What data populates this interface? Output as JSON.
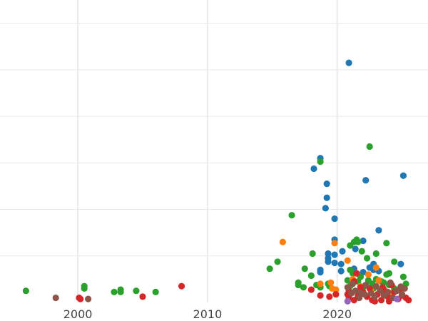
{
  "chart_data": {
    "type": "scatter",
    "title": "",
    "xlabel": "",
    "ylabel": "",
    "xlim": [
      1994,
      2027
    ],
    "ylim": [
      0,
      130
    ],
    "x_ticks": [
      2000,
      2010,
      2020
    ],
    "x_tick_labels": [
      "2000",
      "2010",
      "2020"
    ],
    "y_gridlines": [
      20,
      40,
      60,
      80,
      100,
      120
    ],
    "y_tick_labels_visible": false,
    "grid": true,
    "legend": "none",
    "series": [
      {
        "color": "#1f77b4",
        "points": [
          [
            2020.9,
            103
          ],
          [
            2018.7,
            62
          ],
          [
            2018.2,
            57.5
          ],
          [
            2019.2,
            51
          ],
          [
            2022.2,
            52.5
          ],
          [
            2025.1,
            54.5
          ],
          [
            2019.2,
            45
          ],
          [
            2019.1,
            40.5
          ],
          [
            2019.8,
            36
          ],
          [
            2023.2,
            31
          ],
          [
            2019.8,
            27
          ],
          [
            2022.0,
            26.5
          ],
          [
            2021.4,
            23
          ],
          [
            2020.4,
            22
          ],
          [
            2019.3,
            21
          ],
          [
            2019.8,
            20.5
          ],
          [
            2019.3,
            19
          ],
          [
            2019.3,
            17.5
          ],
          [
            2019.8,
            17
          ],
          [
            2020.3,
            16.5
          ],
          [
            2020.3,
            13.5
          ],
          [
            2018.7,
            14
          ],
          [
            2018.7,
            13
          ],
          [
            2022.8,
            16.5
          ],
          [
            2024.9,
            16.5
          ],
          [
            2022.5,
            15
          ],
          [
            2022.0,
            13
          ],
          [
            2023.2,
            13.5
          ],
          [
            2022.8,
            14
          ],
          [
            2021.3,
            14.5
          ]
        ]
      },
      {
        "color": "#2ca02c",
        "points": [
          [
            1996.0,
            5
          ],
          [
            2000.5,
            7
          ],
          [
            2000.5,
            6
          ],
          [
            2002.8,
            4.5
          ],
          [
            2003.3,
            5.5
          ],
          [
            2003.3,
            4.5
          ],
          [
            2004.5,
            5
          ],
          [
            2006.0,
            4.5
          ],
          [
            2022.5,
            67
          ],
          [
            2018.7,
            60.5
          ],
          [
            2016.5,
            37.5
          ],
          [
            2023.8,
            25.5
          ],
          [
            2021.0,
            24.5
          ],
          [
            2021.3,
            26
          ],
          [
            2021.6,
            26
          ],
          [
            2021.9,
            22
          ],
          [
            2023.0,
            21
          ],
          [
            2021.5,
            27
          ],
          [
            2022.3,
            19
          ],
          [
            2024.4,
            17.5
          ],
          [
            2015.4,
            17.5
          ],
          [
            2014.8,
            14.5
          ],
          [
            2017.5,
            14.5
          ],
          [
            2018.1,
            21
          ],
          [
            2018.0,
            11.5
          ],
          [
            2017.0,
            8.5
          ],
          [
            2017.0,
            7.5
          ],
          [
            2017.4,
            6.5
          ],
          [
            2018.4,
            7.5
          ],
          [
            2018.7,
            6.5
          ],
          [
            2019.3,
            8
          ],
          [
            2019.4,
            7
          ],
          [
            2021.0,
            14
          ],
          [
            2021.2,
            12.5
          ],
          [
            2021.8,
            11
          ],
          [
            2022.4,
            9.5
          ],
          [
            2023.0,
            10
          ],
          [
            2023.4,
            9
          ],
          [
            2023.8,
            12
          ],
          [
            2024.0,
            12.5
          ],
          [
            2025.1,
            11
          ],
          [
            2025.3,
            8
          ],
          [
            2022.7,
            8
          ],
          [
            2021.6,
            9
          ],
          [
            2020.8,
            9.5
          ],
          [
            2021.0,
            7
          ],
          [
            2024.4,
            6
          ],
          [
            2022.0,
            6.5
          ],
          [
            2022.8,
            6
          ],
          [
            2024.0,
            7.5
          ],
          [
            2023.6,
            8.5
          ]
        ]
      },
      {
        "color": "#ff7f0e",
        "points": [
          [
            2015.8,
            26
          ],
          [
            2019.8,
            25.5
          ],
          [
            2020.8,
            18
          ],
          [
            2023.0,
            15
          ],
          [
            2018.7,
            8
          ],
          [
            2019.5,
            8.5
          ],
          [
            2019.6,
            6
          ],
          [
            2019.9,
            5.5
          ],
          [
            2021.2,
            10
          ],
          [
            2022.4,
            12
          ],
          [
            2023.2,
            9.5
          ],
          [
            2024.2,
            4
          ],
          [
            2021.8,
            7
          ],
          [
            2022.6,
            5
          ]
        ]
      },
      {
        "color": "#d62728",
        "points": [
          [
            2000.1,
            2
          ],
          [
            2000.2,
            1.5
          ],
          [
            2005.0,
            2.5
          ],
          [
            2008.0,
            7
          ],
          [
            2018.0,
            5.5
          ],
          [
            2018.7,
            3
          ],
          [
            2019.4,
            2.5
          ],
          [
            2019.9,
            3.5
          ],
          [
            2021.5,
            12.5
          ],
          [
            2021.3,
            9
          ],
          [
            2021.8,
            6.5
          ],
          [
            2020.9,
            5
          ],
          [
            2020.8,
            3.5
          ],
          [
            2020.9,
            2
          ],
          [
            2021.3,
            1
          ],
          [
            2021.6,
            3
          ],
          [
            2022.0,
            4.5
          ],
          [
            2022.3,
            2.5
          ],
          [
            2022.7,
            1
          ],
          [
            2022.9,
            0.5
          ],
          [
            2023.1,
            3.5
          ],
          [
            2023.4,
            1
          ],
          [
            2023.6,
            5.5
          ],
          [
            2023.9,
            2.5
          ],
          [
            2024.2,
            7.5
          ],
          [
            2024.4,
            4.5
          ],
          [
            2024.7,
            1.5
          ],
          [
            2025.0,
            3
          ],
          [
            2025.3,
            2
          ],
          [
            2025.5,
            1
          ],
          [
            2024.0,
            0.5
          ],
          [
            2023.5,
            6.5
          ],
          [
            2022.5,
            6
          ],
          [
            2024.8,
            5.5
          ]
        ]
      },
      {
        "color": "#8c564b",
        "points": [
          [
            1998.3,
            2
          ],
          [
            2000.8,
            1.5
          ],
          [
            2020.8,
            6.5
          ],
          [
            2021.1,
            4
          ],
          [
            2021.4,
            5
          ],
          [
            2021.7,
            2
          ],
          [
            2022.1,
            3.5
          ],
          [
            2022.6,
            4
          ],
          [
            2022.9,
            2.5
          ],
          [
            2023.3,
            5
          ],
          [
            2023.6,
            3
          ],
          [
            2023.9,
            4.5
          ],
          [
            2024.3,
            2
          ],
          [
            2024.6,
            5
          ],
          [
            2025.0,
            3.5
          ],
          [
            2025.2,
            6
          ],
          [
            2021.2,
            8
          ],
          [
            2022.2,
            7.5
          ],
          [
            2023.0,
            7
          ],
          [
            2024.1,
            8.5
          ],
          [
            2021.8,
            4.2
          ],
          [
            2024.9,
            6.8
          ]
        ]
      },
      {
        "color": "#9467bd",
        "points": [
          [
            2020.8,
            0.5
          ],
          [
            2024.6,
            1.5
          ]
        ]
      }
    ]
  }
}
